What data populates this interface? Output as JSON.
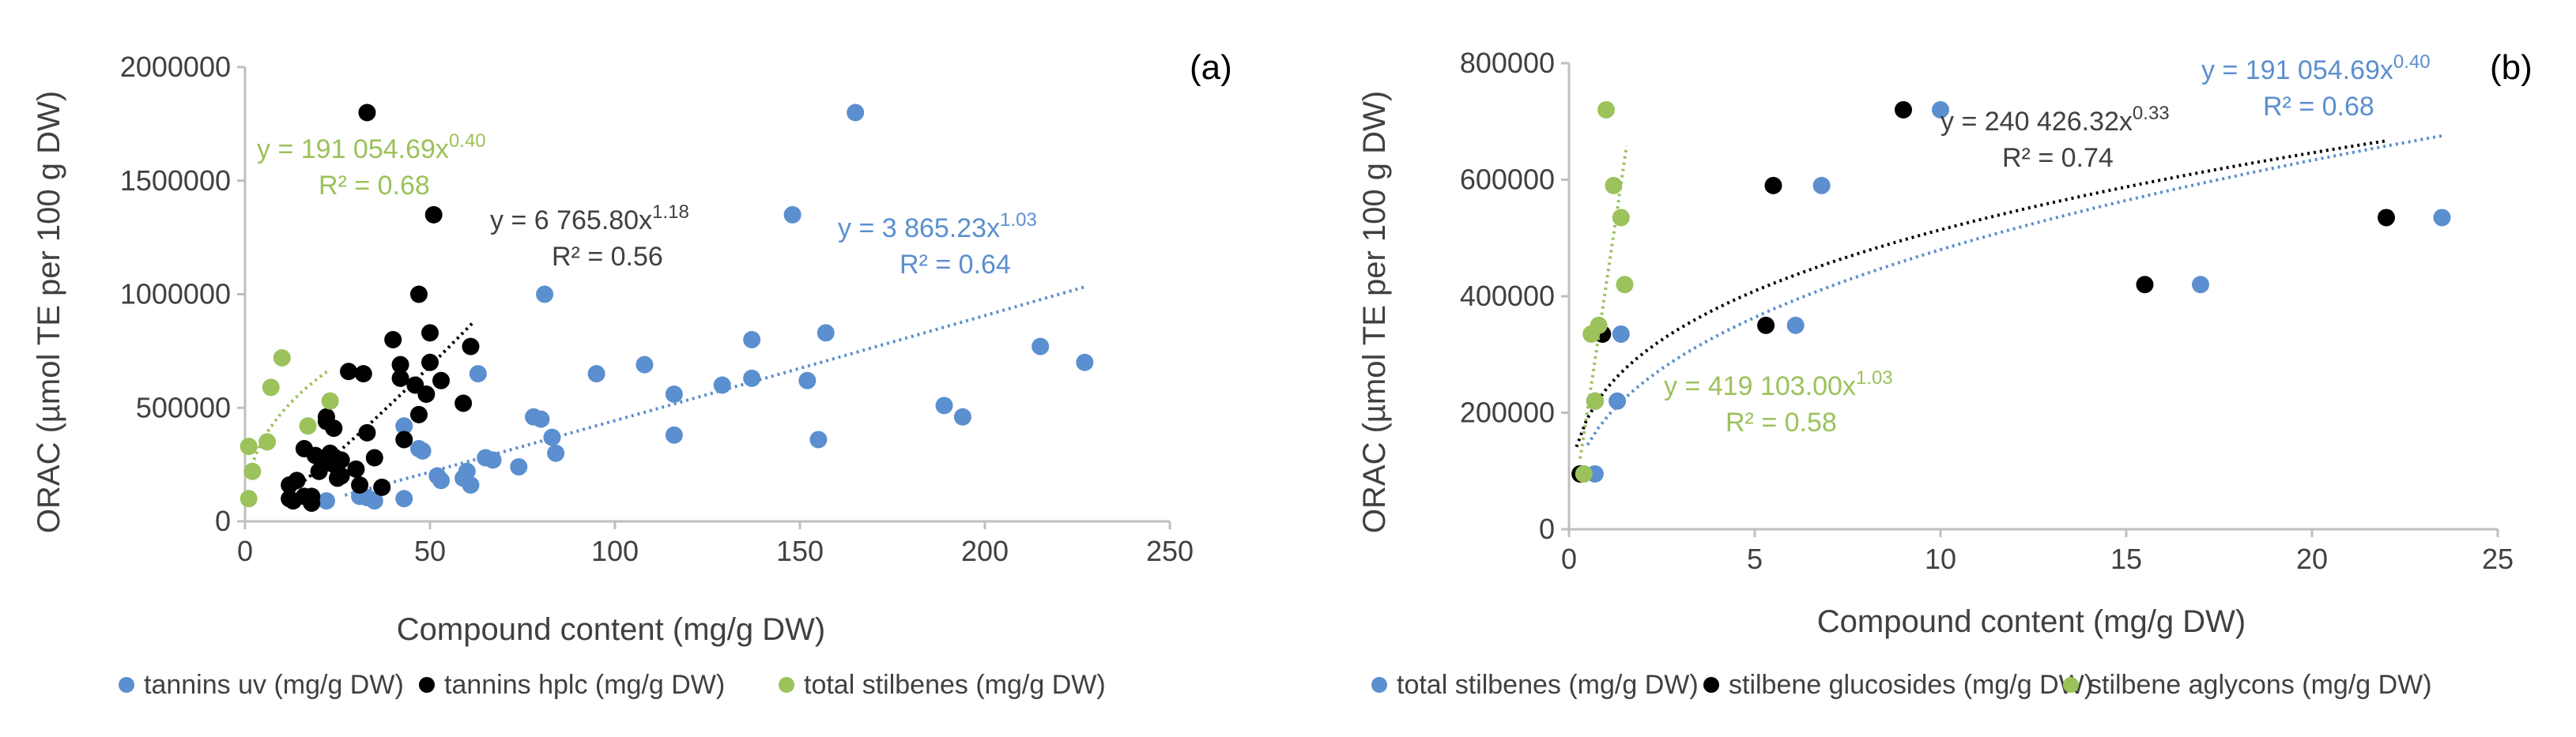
{
  "colors": {
    "blue": "#5B8FCF",
    "black": "#000000",
    "green": "#9BC25B",
    "axis": "#BFBFBF",
    "text": "#404040",
    "black_eq": "#404040"
  },
  "chart_data": [
    {
      "type": "scatter",
      "panel_label": "(a)",
      "xlabel": "Compound content (mg/g DW)",
      "ylabel": "ORAC (µmol TE per 100 g DW)",
      "xlim": [
        0,
        250
      ],
      "ylim": [
        0,
        2000000
      ],
      "x_ticks": [
        "0",
        "50",
        "100",
        "150",
        "200",
        "250"
      ],
      "y_ticks": [
        "0",
        "500000",
        "1000000",
        "1500000",
        "2000000"
      ],
      "x_tick_values": [
        0,
        50,
        100,
        150,
        200,
        250
      ],
      "y_tick_values": [
        0,
        500000,
        1000000,
        1500000,
        2000000
      ],
      "legend": [
        "tannins uv (mg/g DW)",
        "tannins hplc (mg/g DW)",
        "total stilbenes (mg/g DW)"
      ],
      "series": [
        {
          "name": "tannins uv (mg/g DW)",
          "color_key": "blue",
          "points": [
            [
              22,
              90000
            ],
            [
              31,
              110000
            ],
            [
              33,
              105000
            ],
            [
              35,
              90000
            ],
            [
              43,
              100000
            ],
            [
              43,
              420000
            ],
            [
              47,
              320000
            ],
            [
              48,
              310000
            ],
            [
              52,
              200000
            ],
            [
              53,
              180000
            ],
            [
              59,
              190000
            ],
            [
              60,
              220000
            ],
            [
              61,
              160000
            ],
            [
              63,
              650000
            ],
            [
              65,
              280000
            ],
            [
              67,
              270000
            ],
            [
              74,
              240000
            ],
            [
              78,
              460000
            ],
            [
              80,
              450000
            ],
            [
              81,
              1000000
            ],
            [
              83,
              370000
            ],
            [
              84,
              300000
            ],
            [
              95,
              650000
            ],
            [
              108,
              690000
            ],
            [
              116,
              560000
            ],
            [
              116,
              380000
            ],
            [
              129,
              600000
            ],
            [
              137,
              630000
            ],
            [
              137,
              800000
            ],
            [
              148,
              1350000
            ],
            [
              152,
              620000
            ],
            [
              155,
              360000
            ],
            [
              157,
              830000
            ],
            [
              165,
              1800000
            ],
            [
              189,
              510000
            ],
            [
              194,
              460000
            ],
            [
              215,
              770000
            ],
            [
              227,
              700000
            ]
          ],
          "fit": {
            "type": "power",
            "a": 3865.23,
            "b": 1.03,
            "x_range": [
              27,
              227
            ]
          },
          "equation": {
            "lines": [
              "y = 3 865.23x",
              "R² = 0.64"
            ],
            "exp": "1.03"
          }
        },
        {
          "name": "tannins hplc (mg/g DW)",
          "color_key": "black",
          "points": [
            [
              12,
              160000
            ],
            [
              12,
              100000
            ],
            [
              13,
              90000
            ],
            [
              14,
              180000
            ],
            [
              16,
              320000
            ],
            [
              16,
              110000
            ],
            [
              18,
              80000
            ],
            [
              18,
              110000
            ],
            [
              19,
              290000
            ],
            [
              20,
              220000
            ],
            [
              21,
              250000
            ],
            [
              22,
              460000
            ],
            [
              22,
              440000
            ],
            [
              23,
              300000
            ],
            [
              24,
              410000
            ],
            [
              24,
              250000
            ],
            [
              25,
              190000
            ],
            [
              26,
              270000
            ],
            [
              26,
              200000
            ],
            [
              28,
              660000
            ],
            [
              30,
              230000
            ],
            [
              31,
              160000
            ],
            [
              32,
              650000
            ],
            [
              33,
              1800000
            ],
            [
              33,
              390000
            ],
            [
              35,
              280000
            ],
            [
              37,
              150000
            ],
            [
              40,
              800000
            ],
            [
              42,
              690000
            ],
            [
              42,
              630000
            ],
            [
              43,
              360000
            ],
            [
              46,
              600000
            ],
            [
              47,
              1000000
            ],
            [
              47,
              470000
            ],
            [
              49,
              560000
            ],
            [
              50,
              700000
            ],
            [
              50,
              830000
            ],
            [
              51,
              1350000
            ],
            [
              53,
              620000
            ],
            [
              59,
              520000
            ],
            [
              61,
              770000
            ]
          ],
          "fit": {
            "type": "power",
            "a": 6765.8,
            "b": 1.18,
            "x_range": [
              12,
              62
            ]
          },
          "equation": {
            "lines": [
              "y = 6 765.80x",
              "R² = 0.56"
            ],
            "exp": "1.18"
          }
        },
        {
          "name": "total stilbenes (mg/g DW)",
          "color_key": "green",
          "points": [
            [
              1,
              100000
            ],
            [
              1,
              330000
            ],
            [
              2,
              220000
            ],
            [
              6,
              350000
            ],
            [
              7,
              590000
            ],
            [
              10,
              720000
            ],
            [
              17,
              420000
            ],
            [
              23,
              530000
            ]
          ],
          "fit": {
            "type": "power",
            "a": 191054.69,
            "b": 0.4,
            "x_range": [
              1,
              23
            ]
          },
          "equation": {
            "lines": [
              "y = 191 054.69x",
              "R² = 0.68"
            ],
            "exp": "0.40"
          }
        }
      ]
    },
    {
      "type": "scatter",
      "panel_label": "(b)",
      "xlabel": "Compound content (mg/g DW)",
      "ylabel": "ORAC (µmol TE per 100 g DW)",
      "xlim": [
        0,
        25
      ],
      "ylim": [
        0,
        800000
      ],
      "x_ticks": [
        "0",
        "5",
        "10",
        "15",
        "20",
        "25"
      ],
      "y_ticks": [
        "0",
        "200000",
        "400000",
        "600000",
        "800000"
      ],
      "x_tick_values": [
        0,
        5,
        10,
        15,
        20,
        25
      ],
      "y_tick_values": [
        0,
        200000,
        400000,
        600000,
        800000
      ],
      "legend": [
        "total stilbenes (mg/g DW)",
        "stilbene glucosides (mg/g DW)",
        "stilbene aglycons (mg/g DW)"
      ],
      "series": [
        {
          "name": "total stilbenes (mg/g DW)",
          "color_key": "blue",
          "points": [
            [
              0.7,
              95000
            ],
            [
              1.3,
              220000
            ],
            [
              1.4,
              335000
            ],
            [
              6.1,
              350000
            ],
            [
              6.8,
              590000
            ],
            [
              10,
              720000
            ],
            [
              17,
              420000
            ],
            [
              23.5,
              535000
            ]
          ],
          "fit": {
            "type": "power",
            "a": 191054.69,
            "b": 0.4,
            "x_range": [
              0.5,
              23.5
            ]
          },
          "equation": {
            "lines": [
              "y = 191 054.69x",
              "R² = 0.68"
            ],
            "exp": "0.40"
          }
        },
        {
          "name": "stilbene glucosides (mg/g DW)",
          "color_key": "black",
          "points": [
            [
              0.3,
              95000
            ],
            [
              0.7,
              220000
            ],
            [
              0.9,
              335000
            ],
            [
              5.3,
              350000
            ],
            [
              5.5,
              590000
            ],
            [
              9,
              720000
            ],
            [
              15.5,
              420000
            ],
            [
              22,
              535000
            ]
          ],
          "fit": {
            "type": "power",
            "a": 240426.32,
            "b": 0.33,
            "x_range": [
              0.2,
              22
            ]
          },
          "equation": {
            "lines": [
              "y = 240 426.32x",
              "R² = 0.74"
            ],
            "exp": "0.33"
          }
        },
        {
          "name": "stilbene aglycons (mg/g DW)",
          "color_key": "green",
          "points": [
            [
              0.4,
              95000
            ],
            [
              0.6,
              335000
            ],
            [
              0.7,
              220000
            ],
            [
              0.8,
              350000
            ],
            [
              1.0,
              720000
            ],
            [
              1.2,
              590000
            ],
            [
              1.4,
              535000
            ],
            [
              1.5,
              420000
            ]
          ],
          "fit": {
            "type": "power",
            "a": 419103.0,
            "b": 1.03,
            "x_range": [
              0.3,
              1.55
            ]
          },
          "equation": {
            "lines": [
              "y = 419 103.00x",
              "R² = 0.58"
            ],
            "exp": "1.03"
          }
        }
      ]
    }
  ]
}
